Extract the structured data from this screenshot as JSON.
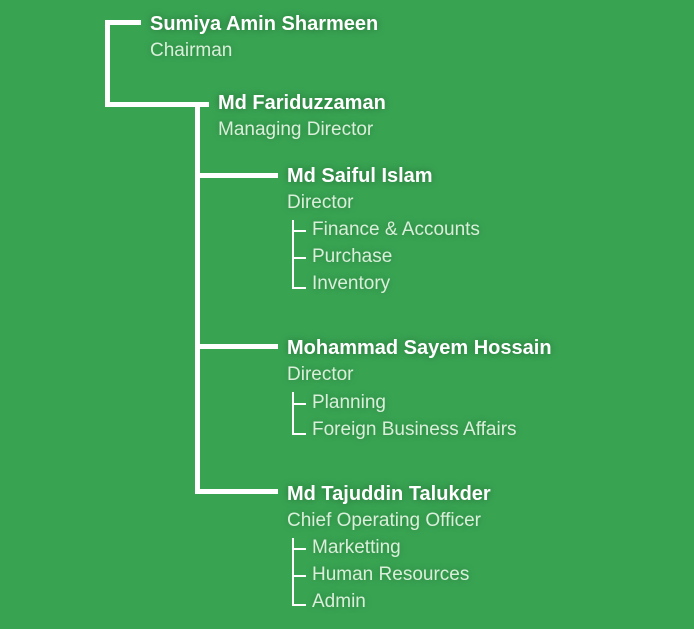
{
  "chairman": {
    "name": "Sumiya Amin Sharmeen",
    "title": "Chairman"
  },
  "md": {
    "name": "Md Fariduzzaman",
    "title": "Managing Director"
  },
  "directors": [
    {
      "name": "Md Saiful Islam",
      "title": "Director",
      "departments": [
        "Finance & Accounts",
        "Purchase",
        "Inventory"
      ]
    },
    {
      "name": "Mohammad Sayem Hossain",
      "title": "Director",
      "departments": [
        "Planning",
        "Foreign Business Affairs"
      ]
    },
    {
      "name": "Md Tajuddin Talukder",
      "title": "Chief Operating Officer",
      "departments": [
        "Marketting",
        "Human Resources",
        "Admin"
      ]
    }
  ],
  "colors": {
    "background": "#38a452",
    "name": "#ffffff",
    "subtitle": "#d9efd9",
    "connector": "#ffffff"
  }
}
